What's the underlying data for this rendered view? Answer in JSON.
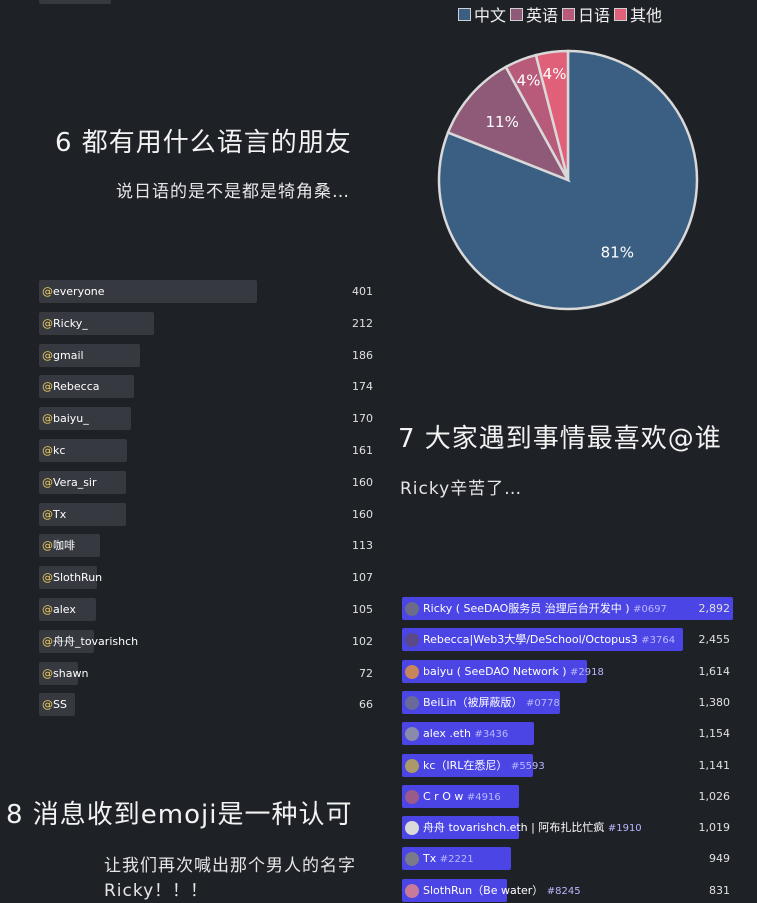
{
  "section6": {
    "title": "6 都有用什么语言的朋友",
    "subtitle": "说日语的是不是都是犄角桑…"
  },
  "section7": {
    "title": "7 大家遇到事情最喜欢@谁",
    "subtitle": "Ricky辛苦了…"
  },
  "section8": {
    "title": "8 消息收到emoji是一种认可",
    "subtitle_line1": "让我们再次喊出那个男人的名字",
    "subtitle_line2": "Ricky！！！"
  },
  "chart_data": [
    {
      "type": "pie",
      "legend_position": "top",
      "slices": [
        {
          "label": "中文",
          "value": 81,
          "display": "81%",
          "color": "#3a5f82"
        },
        {
          "label": "英语",
          "value": 11,
          "display": "11%",
          "color": "#8e5a78"
        },
        {
          "label": "日语",
          "value": 4,
          "display": "4%",
          "color": "#b85a7a"
        },
        {
          "label": "其他",
          "value": 4,
          "display": "4%",
          "color": "#df6078"
        }
      ]
    },
    {
      "type": "bar",
      "orientation": "horizontal",
      "color": "#36393f",
      "categories": [
        "@everyone",
        "@Ricky_",
        "@gmail",
        "@Rebecca",
        "@baiyu_",
        "@kc",
        "@Vera_sir",
        "@Tx",
        "@咖啡",
        "@SlothRun",
        "@alex",
        "@舟舟_tovarishch",
        "@shawn",
        "@SS"
      ],
      "values": [
        401,
        212,
        186,
        174,
        170,
        161,
        160,
        160,
        113,
        107,
        105,
        102,
        72,
        66
      ],
      "xlim": [
        0,
        401
      ]
    },
    {
      "type": "bar",
      "orientation": "horizontal",
      "color": "#4b45e6",
      "categories": [
        {
          "name": "Ricky ( SeeDAO服务员",
          "extra": "治理后台开发中 )",
          "tag": "#0697",
          "value_text": "2,892",
          "avatar": "#6b6b8a"
        },
        {
          "name": "Rebecca|Web3大學/DeSchool/Octopus3",
          "extra": "",
          "tag": "#3764",
          "value_text": "2,455",
          "avatar": "#5a4a8a"
        },
        {
          "name": "baiyu ( SeeDAO Network )",
          "extra": "",
          "tag": "#2918",
          "value_text": "1,614",
          "avatar": "#c8845a"
        },
        {
          "name": "BeiLin（被屏蔽版）",
          "extra": "",
          "tag": "#0778",
          "value_text": "1,380",
          "avatar": "#6a6a9a"
        },
        {
          "name": "alex",
          "extra": ".eth",
          "tag": "#3436",
          "value_text": "1,154",
          "avatar": "#8a8aaa"
        },
        {
          "name": "kc（IRL在悉尼）",
          "extra": "",
          "tag": "#5593",
          "value_text": "1,141",
          "avatar": "#aa9a6a"
        },
        {
          "name": "C r O w",
          "extra": "",
          "tag": "#4916",
          "value_text": "1,026",
          "avatar": "#9a5a8a"
        },
        {
          "name": "舟舟 tovarishch.eth | 阿布扎比忙疯",
          "extra": "",
          "tag": "#1910",
          "value_text": "1,019",
          "avatar": "#dadada"
        },
        {
          "name": "Tx",
          "extra": "",
          "tag": "#2221",
          "value_text": "949",
          "avatar": "#7a7a8a"
        },
        {
          "name": "SlothRun（Be water）",
          "extra": "",
          "tag": "#8245",
          "value_text": "831",
          "avatar": "#c87a9a"
        }
      ],
      "values": [
        2892,
        2455,
        1614,
        1380,
        1154,
        1141,
        1026,
        1019,
        949,
        831
      ],
      "xlim": [
        0,
        2892
      ]
    }
  ]
}
